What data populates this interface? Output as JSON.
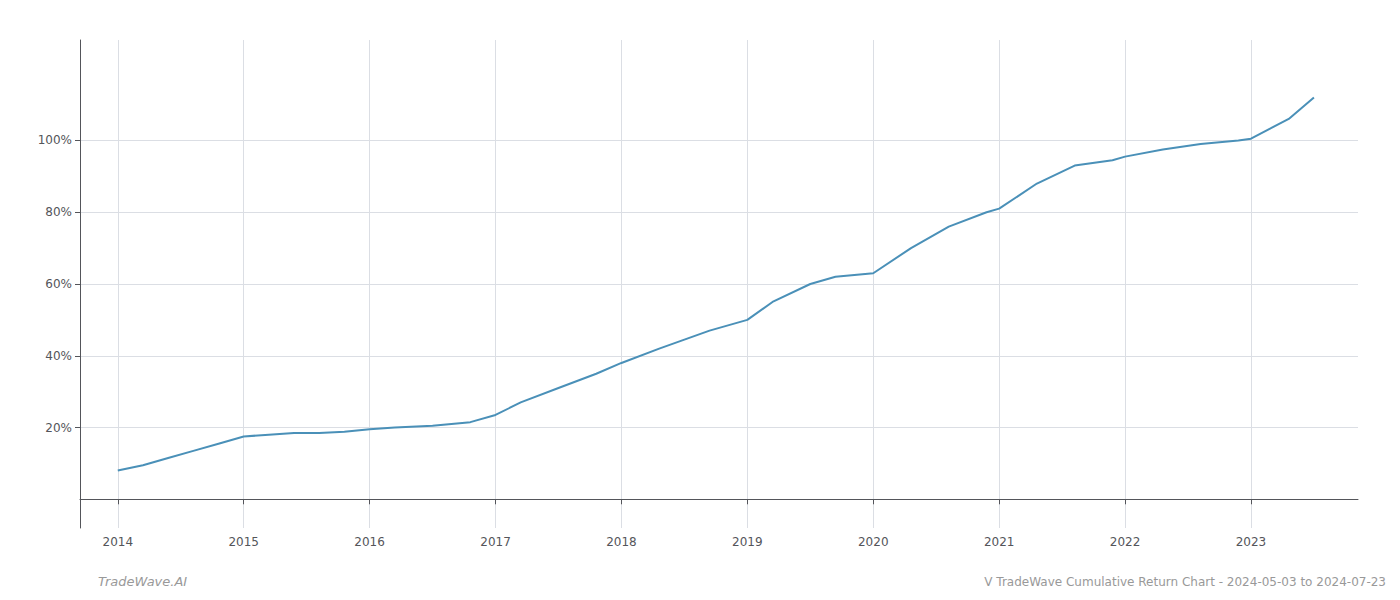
{
  "chart_data": {
    "type": "line",
    "title": "V TradeWave Cumulative Return Chart - 2024-05-03 to 2024-07-23",
    "annotations": [
      "TradeWave.AI"
    ],
    "x": [
      2014.0,
      2014.2,
      2014.4,
      2014.6,
      2014.8,
      2015.0,
      2015.2,
      2015.4,
      2015.6,
      2015.8,
      2016.0,
      2016.2,
      2016.5,
      2016.8,
      2017.0,
      2017.2,
      2017.5,
      2017.8,
      2018.0,
      2018.3,
      2018.5,
      2018.7,
      2019.0,
      2019.2,
      2019.5,
      2019.7,
      2020.0,
      2020.3,
      2020.6,
      2020.9,
      2021.0,
      2021.3,
      2021.6,
      2021.9,
      2022.0,
      2022.3,
      2022.6,
      2022.9,
      2023.0,
      2023.3,
      2023.5
    ],
    "values": [
      8.0,
      9.5,
      11.5,
      13.5,
      15.5,
      17.5,
      18.0,
      18.5,
      18.5,
      18.8,
      19.5,
      20.0,
      20.5,
      21.5,
      23.5,
      27.0,
      31.0,
      35.0,
      38.0,
      42.0,
      44.5,
      47.0,
      50.0,
      55.0,
      60.0,
      62.0,
      63.0,
      70.0,
      76.0,
      80.0,
      81.0,
      88.0,
      93.0,
      94.5,
      95.5,
      97.5,
      99.0,
      100.0,
      100.5,
      106.0,
      112.0
    ],
    "color": "#4a90b8",
    "xlim": [
      2013.7,
      2023.85
    ],
    "ylim": [
      -8,
      128
    ],
    "xticks": [
      2014,
      2015,
      2016,
      2017,
      2018,
      2019,
      2020,
      2021,
      2022,
      2023
    ],
    "yticks": [
      {
        "value": 20,
        "label": "20%"
      },
      {
        "value": 40,
        "label": "40%"
      },
      {
        "value": 60,
        "label": "60%"
      },
      {
        "value": 80,
        "label": "80%"
      },
      {
        "value": 100,
        "label": "100%"
      }
    ],
    "grid": true
  }
}
